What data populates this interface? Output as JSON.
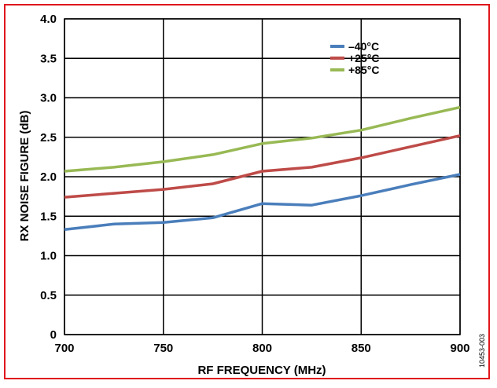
{
  "figure_id": "10453-003",
  "colors": {
    "frame": "#e0161b",
    "grid": "#000000"
  },
  "chart_data": {
    "type": "line",
    "title": "",
    "xlabel": "RF FREQUENCY (MHz)",
    "ylabel": "RX NOISE FIGURE (dB)",
    "xlim": [
      700,
      900
    ],
    "ylim": [
      0,
      4.0
    ],
    "xticks": [
      "700",
      "750",
      "800",
      "850",
      "900"
    ],
    "yticks": [
      "0",
      "0.5",
      "1.0",
      "1.5",
      "2.0",
      "2.5",
      "3.0",
      "3.5",
      "4.0"
    ],
    "grid": true,
    "legend_position": "top-right",
    "x": [
      700,
      725,
      750,
      775,
      800,
      825,
      850,
      875,
      900
    ],
    "series": [
      {
        "name": "–40°C",
        "color": "#4a7ebb",
        "values": [
          1.33,
          1.4,
          1.42,
          1.48,
          1.66,
          1.64,
          1.76,
          1.9,
          2.03
        ]
      },
      {
        "name": "+25°C",
        "color": "#be4b48",
        "values": [
          1.74,
          1.79,
          1.84,
          1.91,
          2.07,
          2.12,
          2.24,
          2.38,
          2.52
        ]
      },
      {
        "name": "+85°C",
        "color": "#98b954",
        "values": [
          2.07,
          2.12,
          2.19,
          2.28,
          2.42,
          2.49,
          2.59,
          2.74,
          2.88
        ]
      }
    ]
  }
}
